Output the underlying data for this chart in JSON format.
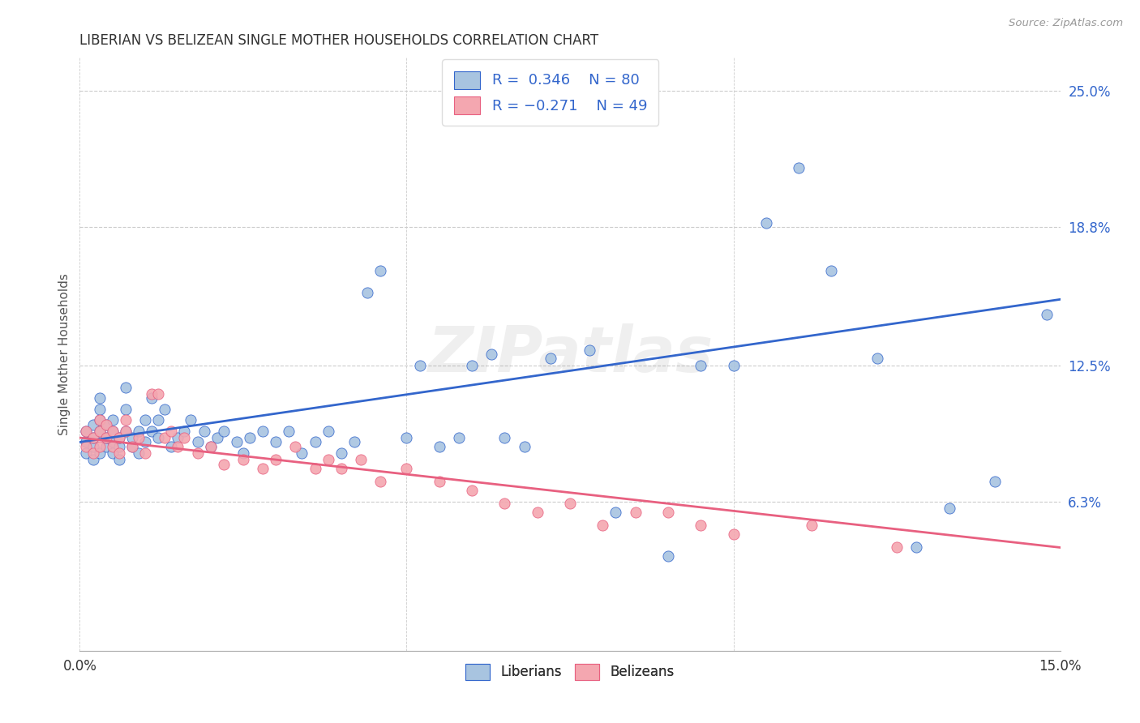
{
  "title": "LIBERIAN VS BELIZEAN SINGLE MOTHER HOUSEHOLDS CORRELATION CHART",
  "source": "Source: ZipAtlas.com",
  "ylabel": "Single Mother Households",
  "ytick_labels": [
    "6.3%",
    "12.5%",
    "18.8%",
    "25.0%"
  ],
  "ytick_values": [
    0.063,
    0.125,
    0.188,
    0.25
  ],
  "xlim": [
    0.0,
    0.15
  ],
  "ylim": [
    -0.005,
    0.265
  ],
  "liberian_color": "#a8c4e0",
  "belizean_color": "#f4a7b0",
  "liberian_line_color": "#3366cc",
  "belizean_line_color": "#e86080",
  "watermark": "ZIPatlas",
  "lib_line_x0": 0.0,
  "lib_line_y0": 0.09,
  "lib_line_x1": 0.15,
  "lib_line_y1": 0.155,
  "bel_line_x0": 0.0,
  "bel_line_y0": 0.092,
  "bel_line_x1": 0.15,
  "bel_line_y1": 0.042,
  "liberian_x": [
    0.001,
    0.001,
    0.001,
    0.002,
    0.002,
    0.002,
    0.002,
    0.003,
    0.003,
    0.003,
    0.003,
    0.003,
    0.004,
    0.004,
    0.004,
    0.005,
    0.005,
    0.005,
    0.005,
    0.006,
    0.006,
    0.006,
    0.007,
    0.007,
    0.007,
    0.008,
    0.008,
    0.009,
    0.009,
    0.01,
    0.01,
    0.011,
    0.011,
    0.012,
    0.012,
    0.013,
    0.014,
    0.015,
    0.016,
    0.017,
    0.018,
    0.019,
    0.02,
    0.021,
    0.022,
    0.024,
    0.025,
    0.026,
    0.028,
    0.03,
    0.032,
    0.034,
    0.036,
    0.038,
    0.04,
    0.042,
    0.044,
    0.046,
    0.05,
    0.052,
    0.055,
    0.058,
    0.06,
    0.063,
    0.065,
    0.068,
    0.072,
    0.078,
    0.082,
    0.09,
    0.095,
    0.1,
    0.105,
    0.11,
    0.115,
    0.122,
    0.128,
    0.133,
    0.14,
    0.148
  ],
  "liberian_y": [
    0.085,
    0.09,
    0.095,
    0.088,
    0.092,
    0.082,
    0.098,
    0.095,
    0.1,
    0.085,
    0.11,
    0.105,
    0.088,
    0.092,
    0.098,
    0.085,
    0.09,
    0.095,
    0.1,
    0.088,
    0.092,
    0.082,
    0.095,
    0.105,
    0.115,
    0.088,
    0.092,
    0.095,
    0.085,
    0.09,
    0.1,
    0.095,
    0.11,
    0.092,
    0.1,
    0.105,
    0.088,
    0.092,
    0.095,
    0.1,
    0.09,
    0.095,
    0.088,
    0.092,
    0.095,
    0.09,
    0.085,
    0.092,
    0.095,
    0.09,
    0.095,
    0.085,
    0.09,
    0.095,
    0.085,
    0.09,
    0.158,
    0.168,
    0.092,
    0.125,
    0.088,
    0.092,
    0.125,
    0.13,
    0.092,
    0.088,
    0.128,
    0.132,
    0.058,
    0.038,
    0.125,
    0.125,
    0.19,
    0.215,
    0.168,
    0.128,
    0.042,
    0.06,
    0.072,
    0.148
  ],
  "belizean_x": [
    0.001,
    0.001,
    0.002,
    0.002,
    0.003,
    0.003,
    0.003,
    0.004,
    0.004,
    0.005,
    0.005,
    0.006,
    0.006,
    0.007,
    0.007,
    0.008,
    0.009,
    0.01,
    0.011,
    0.012,
    0.013,
    0.014,
    0.015,
    0.016,
    0.018,
    0.02,
    0.022,
    0.025,
    0.028,
    0.03,
    0.033,
    0.036,
    0.038,
    0.04,
    0.043,
    0.046,
    0.05,
    0.055,
    0.06,
    0.065,
    0.07,
    0.075,
    0.08,
    0.085,
    0.09,
    0.095,
    0.1,
    0.112,
    0.125
  ],
  "belizean_y": [
    0.088,
    0.095,
    0.085,
    0.092,
    0.088,
    0.095,
    0.1,
    0.092,
    0.098,
    0.088,
    0.095,
    0.092,
    0.085,
    0.095,
    0.1,
    0.088,
    0.092,
    0.085,
    0.112,
    0.112,
    0.092,
    0.095,
    0.088,
    0.092,
    0.085,
    0.088,
    0.08,
    0.082,
    0.078,
    0.082,
    0.088,
    0.078,
    0.082,
    0.078,
    0.082,
    0.072,
    0.078,
    0.072,
    0.068,
    0.062,
    0.058,
    0.062,
    0.052,
    0.058,
    0.058,
    0.052,
    0.048,
    0.052,
    0.042
  ]
}
